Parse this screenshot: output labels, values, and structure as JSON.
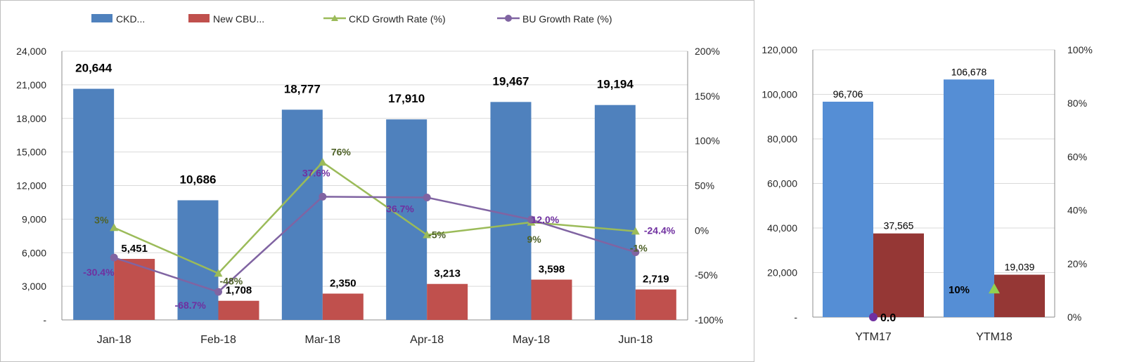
{
  "chart_data": [
    {
      "type": "bar",
      "title": "",
      "categories": [
        "Jan-18",
        "Feb-18",
        "Mar-18",
        "Apr-18",
        "May-18",
        "Jun-18"
      ],
      "ylim": [
        0,
        24000
      ],
      "y2lim": [
        -100,
        200
      ],
      "y_ticks": [
        "-",
        "3,000",
        "6,000",
        "9,000",
        "12,000",
        "15,000",
        "18,000",
        "21,000",
        "24,000"
      ],
      "y2_ticks": [
        "-100%",
        "-50%",
        "0%",
        "50%",
        "100%",
        "150%",
        "200%"
      ],
      "legend_position": "top",
      "series": [
        {
          "name": "CKD...",
          "kind": "bar",
          "color": "#4f81bd",
          "values": [
            20644,
            10686,
            18777,
            17910,
            19467,
            19194
          ],
          "labels": [
            "20,644",
            "10,686",
            "18,777",
            "17,910",
            "19,467",
            "19,194"
          ]
        },
        {
          "name": "New CBU...",
          "kind": "bar",
          "color": "#c0504d",
          "values": [
            5451,
            1708,
            2350,
            3213,
            3598,
            2719
          ],
          "labels": [
            "5,451",
            "1,708",
            "2,350",
            "3,213",
            "3,598",
            "2,719"
          ]
        },
        {
          "name": "CKD Growth Rate (%)",
          "kind": "line",
          "axis": "secondary",
          "marker": "triangle",
          "color": "#9bbb59",
          "values": [
            3,
            -48,
            76,
            -5,
            9,
            -1
          ],
          "labels": [
            "3%",
            "-48%",
            "76%",
            "-5%",
            "9%",
            "-1%"
          ]
        },
        {
          "name": "BU Growth Rate (%)",
          "kind": "line",
          "axis": "secondary",
          "marker": "circle",
          "color": "#8064a2",
          "values": [
            -30.4,
            -68.7,
            37.6,
            36.7,
            12.0,
            -24.4
          ],
          "labels": [
            "-30.4%",
            "-68.7%",
            "37.6%",
            "36.7%",
            "12.0%",
            "-24.4%"
          ]
        }
      ]
    },
    {
      "type": "bar",
      "title": "",
      "categories": [
        "YTM17",
        "YTM18"
      ],
      "ylim": [
        0,
        120000
      ],
      "y2lim": [
        0,
        100
      ],
      "y_ticks": [
        "-",
        "20,000",
        "40,000",
        "60,000",
        "80,000",
        "100,000",
        "120,000"
      ],
      "y2_ticks": [
        "0%",
        "20%",
        "40%",
        "60%",
        "80%",
        "100%"
      ],
      "series": [
        {
          "name": "CKD",
          "kind": "bar",
          "color": "#558ed5",
          "values": [
            96706,
            106678
          ],
          "labels": [
            "96,706",
            "106,678"
          ]
        },
        {
          "name": "New CBU",
          "kind": "bar",
          "color": "#953735",
          "values": [
            37565,
            19039
          ],
          "labels": [
            "37,565",
            "19,039"
          ]
        },
        {
          "name": "BU Growth Rate",
          "kind": "point",
          "marker": "circle",
          "color": "#7030a0",
          "category_index": 0,
          "value": 0.0,
          "label": "0.0"
        },
        {
          "name": "CKD Growth Rate",
          "kind": "point",
          "marker": "triangle",
          "color": "#92d050",
          "category_index": 1,
          "value": 10,
          "label": "10%"
        }
      ]
    }
  ]
}
